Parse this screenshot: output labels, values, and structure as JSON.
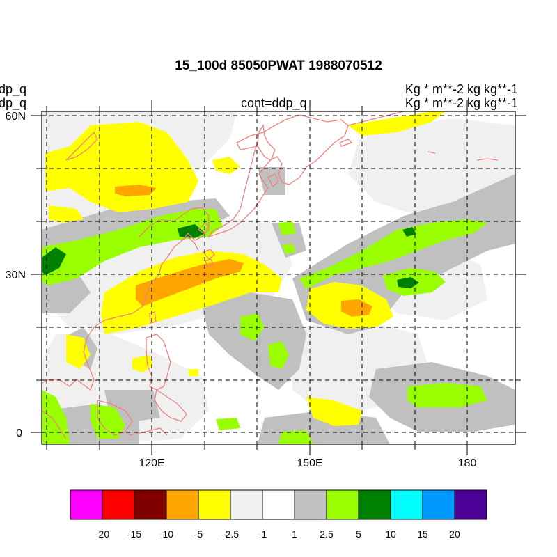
{
  "title": "15_100d 85050PWAT  1988070512",
  "left_label_1": "ddp_q",
  "left_label_2": "ddp_q",
  "center_label": "cont=ddp_q",
  "right_label_1": "Kg  * m**-2 kg kg**-1",
  "right_label_2": "Kg  * m**-2 kg kg**-1",
  "lat_labels": [
    "60N",
    "30N",
    "0"
  ],
  "lon_labels": [
    "120E",
    "150E",
    "180"
  ],
  "colorbar": {
    "colors": [
      "#ff00ff",
      "#ff0000",
      "#800000",
      "#ffa500",
      "#ffff00",
      "#f0f0f0",
      "#ffffff",
      "#c0c0c0",
      "#99ff00",
      "#008000",
      "#00ffff",
      "#0099ff",
      "#4b0096"
    ],
    "labels": [
      "-20",
      "-15",
      "-10",
      "-5",
      "-2.5",
      "-1",
      "1",
      "2.5",
      "5",
      "10",
      "15",
      "20"
    ]
  },
  "colors": {
    "coastline": "#f08080",
    "grid": "#000000",
    "frame": "#000000"
  }
}
